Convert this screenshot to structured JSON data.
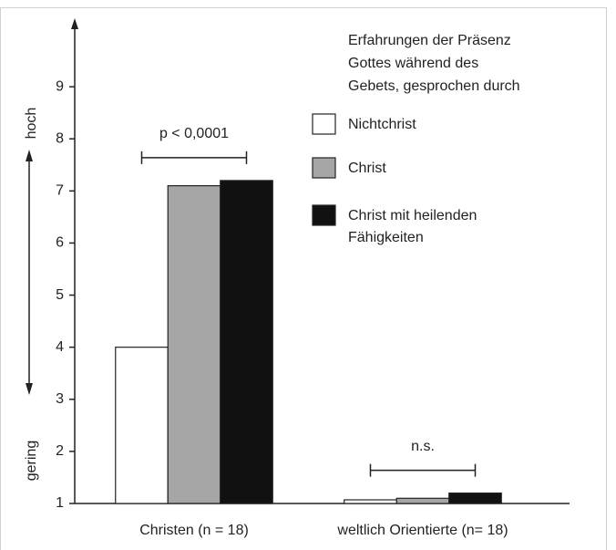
{
  "chart_data": {
    "type": "bar",
    "categories": [
      "Christen (n = 18)",
      "weltlich Orientierte (n= 18)"
    ],
    "series": [
      {
        "name": "Nichtchrist",
        "color": "#ffffff",
        "values": [
          4.0,
          1.07
        ]
      },
      {
        "name": "Christ",
        "color": "#a6a6a6",
        "values": [
          7.1,
          1.1
        ]
      },
      {
        "name": "Christ mit heilenden Fähigkeiten",
        "color": "#111111",
        "values": [
          7.2,
          1.2
        ]
      }
    ],
    "legend_title": [
      "Erfahrungen der Präsenz",
      "Gottes während des",
      "Gebets, gesprochen durch"
    ],
    "group_annotations": [
      "p < 0,0001",
      "n.s."
    ],
    "y_axis_labels": {
      "high": "hoch",
      "low": "gering"
    },
    "ylim": [
      1,
      10.28
    ],
    "yticks": [
      1,
      2,
      3,
      4,
      5,
      6,
      7,
      8,
      9
    ]
  }
}
